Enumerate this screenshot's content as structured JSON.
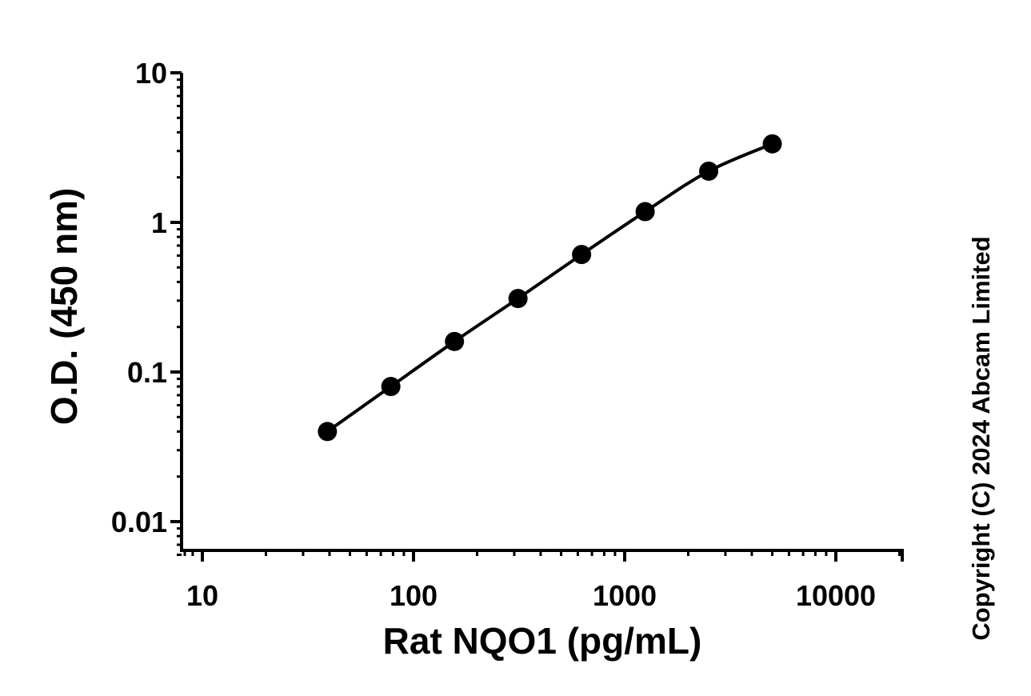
{
  "chart_data": {
    "type": "scatter",
    "title": "",
    "xlabel": "Rat NQO1 (pg/mL)",
    "ylabel": "O.D. (450 nm)",
    "x_scale": "log",
    "y_scale": "log",
    "xlim": [
      8,
      20000
    ],
    "ylim": [
      0.006,
      10
    ],
    "x_ticks": [
      10,
      100,
      1000,
      10000
    ],
    "x_tick_labels": [
      "10",
      "100",
      "1000",
      "10000"
    ],
    "y_ticks": [
      0.01,
      0.1,
      1,
      10
    ],
    "y_tick_labels": [
      "0.01",
      "0.1",
      "1",
      "10"
    ],
    "grid": false,
    "legend": "none",
    "series": [
      {
        "marker": "circle",
        "color": "#000000",
        "fit_line": true,
        "x": [
          39.1,
          78.1,
          156.3,
          312.5,
          625,
          1250,
          2500,
          5000
        ],
        "y": [
          0.04,
          0.08,
          0.16,
          0.31,
          0.61,
          1.18,
          2.2,
          3.35
        ]
      }
    ]
  },
  "copyright": "Copyright (C) 2024 Abcam Limited"
}
